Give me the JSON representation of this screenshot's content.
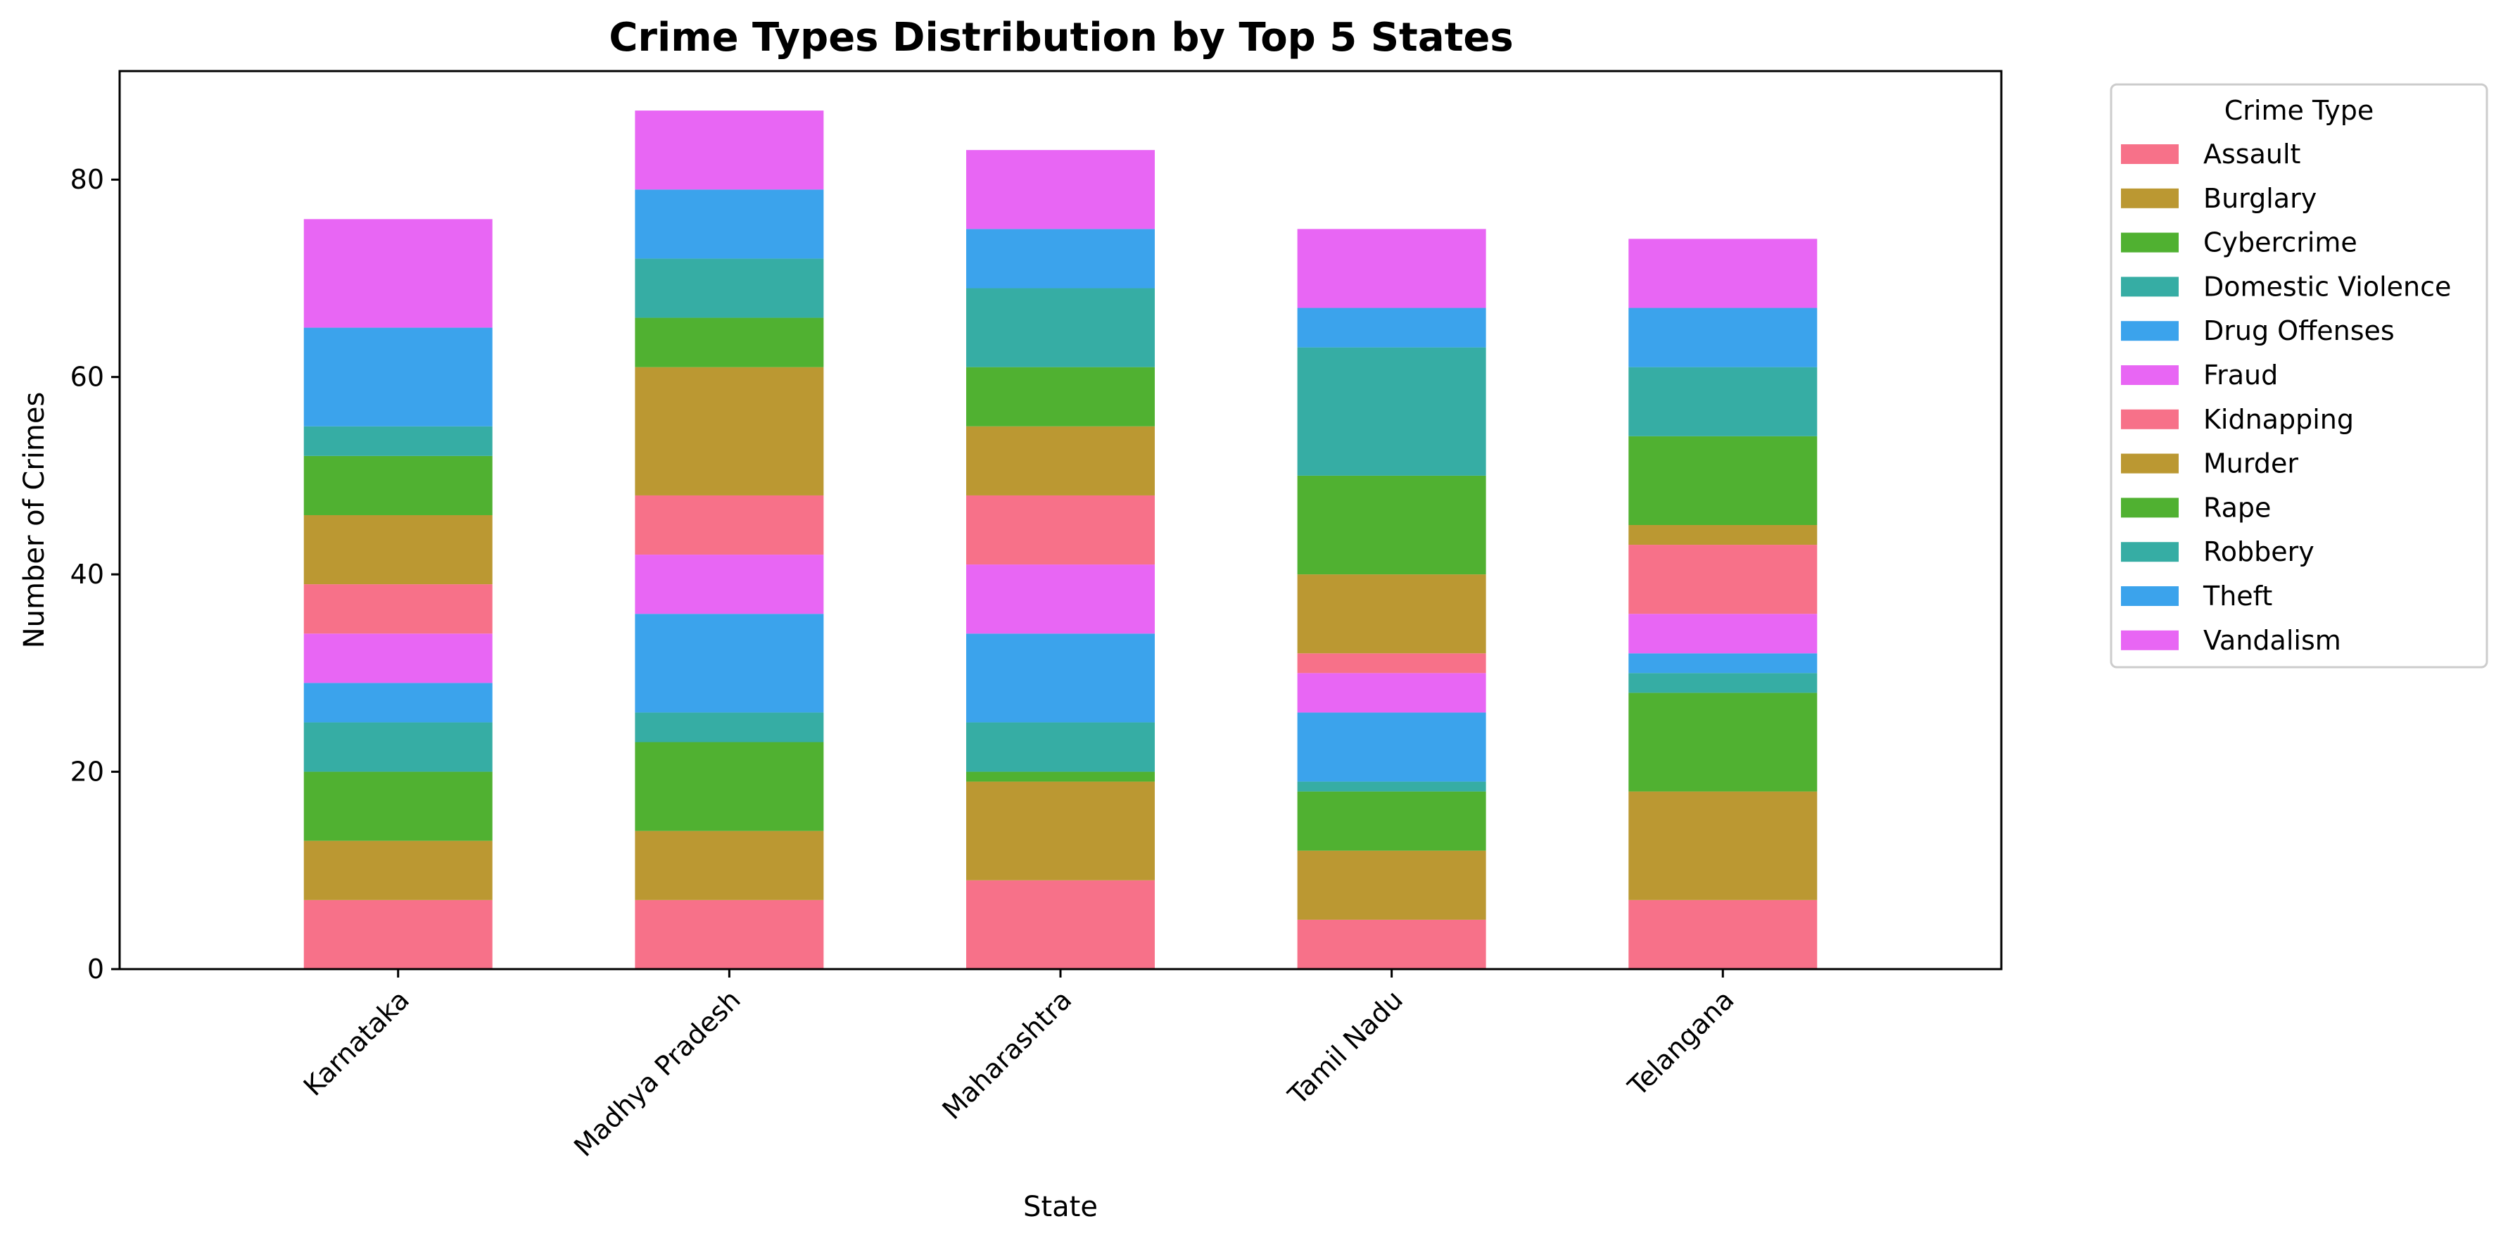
{
  "chart_data": {
    "type": "bar",
    "stacked": true,
    "title": "Crime Types Distribution by Top 5 States",
    "xlabel": "State",
    "ylabel": "Number of Crimes",
    "ylim": [
      0,
      91
    ],
    "yticks": [
      0,
      20,
      40,
      60,
      80
    ],
    "grid": false,
    "categories": [
      "Karnataka",
      "Madhya Pradesh",
      "Maharashtra",
      "Tamil Nadu",
      "Telangana"
    ],
    "legend": {
      "title": "Crime Type",
      "placement": "outside-right"
    },
    "series": [
      {
        "name": "Assault",
        "color": "#f77189",
        "values": [
          7,
          7,
          9,
          5,
          7
        ]
      },
      {
        "name": "Burglary",
        "color": "#bb9832",
        "values": [
          6,
          7,
          10,
          7,
          11
        ]
      },
      {
        "name": "Cybercrime",
        "color": "#50b131",
        "values": [
          7,
          9,
          1,
          6,
          10
        ]
      },
      {
        "name": "Domestic Violence",
        "color": "#36ada4",
        "values": [
          5,
          3,
          5,
          1,
          2
        ]
      },
      {
        "name": "Drug Offenses",
        "color": "#3ba3ec",
        "values": [
          4,
          10,
          9,
          7,
          2
        ]
      },
      {
        "name": "Fraud",
        "color": "#e866f4",
        "values": [
          5,
          6,
          7,
          4,
          4
        ]
      },
      {
        "name": "Kidnapping",
        "color": "#f77189",
        "values": [
          5,
          6,
          7,
          2,
          7
        ]
      },
      {
        "name": "Murder",
        "color": "#bb9832",
        "values": [
          7,
          13,
          7,
          8,
          2
        ]
      },
      {
        "name": "Rape",
        "color": "#50b131",
        "values": [
          6,
          5,
          6,
          10,
          9
        ]
      },
      {
        "name": "Robbery",
        "color": "#36ada4",
        "values": [
          3,
          6,
          8,
          13,
          7
        ]
      },
      {
        "name": "Theft",
        "color": "#3ba3ec",
        "values": [
          10,
          7,
          6,
          4,
          6
        ]
      },
      {
        "name": "Vandalism",
        "color": "#e866f4",
        "values": [
          11,
          8,
          8,
          8,
          7
        ]
      }
    ]
  }
}
